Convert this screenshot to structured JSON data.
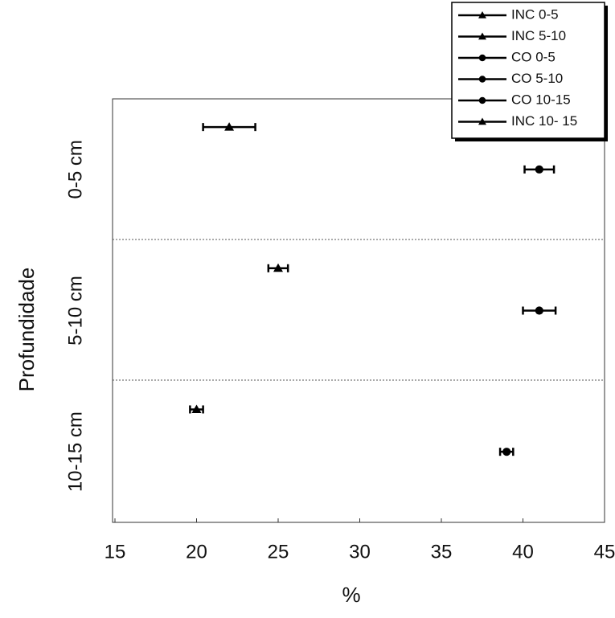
{
  "chart_data": {
    "type": "scatter",
    "x_label": "%",
    "y_label": "Profundidade",
    "categories": [
      "0-5 cm",
      "5-10 cm",
      "10-15 cm"
    ],
    "xlim": [
      15,
      45
    ],
    "xticks": [
      15,
      20,
      25,
      30,
      35,
      40,
      45
    ],
    "series": [
      {
        "name": "INC 0-5",
        "color": "#000000",
        "marker": "triangle",
        "values": [
          22,
          null,
          null
        ],
        "errors": [
          1.6,
          null,
          null
        ]
      },
      {
        "name": "INC 5-10",
        "color": "#000000",
        "marker": "triangle",
        "values": [
          null,
          25,
          null
        ],
        "errors": [
          null,
          0.6,
          null
        ]
      },
      {
        "name": "CO 0-5",
        "color": "#000000",
        "marker": "circle",
        "values": [
          41,
          null,
          null
        ],
        "errors": [
          0.9,
          null,
          null
        ]
      },
      {
        "name": "CO 5-10",
        "color": "#000000",
        "marker": "circle",
        "values": [
          null,
          41,
          null
        ],
        "errors": [
          null,
          1,
          null
        ]
      },
      {
        "name": "CO 10-15",
        "color": "#000000",
        "marker": "circle",
        "values": [
          null,
          null,
          39
        ],
        "errors": [
          null,
          null,
          0.4
        ]
      },
      {
        "name": "INC 10- 15",
        "color": "#000000",
        "marker": "triangle",
        "values": [
          null,
          null,
          20
        ],
        "errors": [
          null,
          null,
          0.4
        ]
      }
    ]
  }
}
